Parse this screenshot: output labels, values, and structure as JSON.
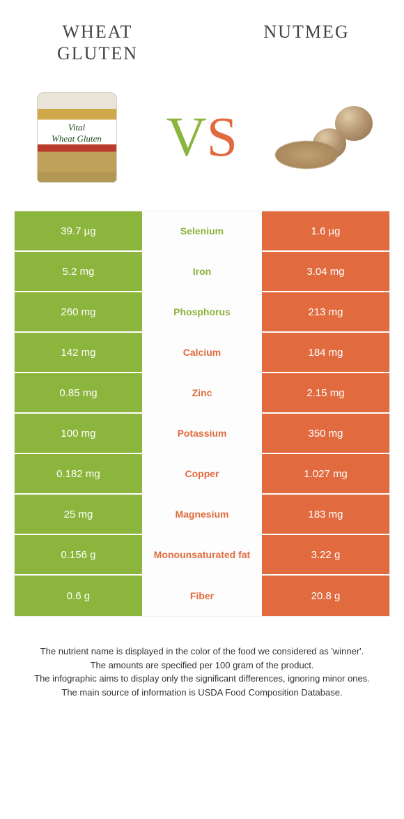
{
  "colors": {
    "left": "#8bb53c",
    "right": "#e16b3f",
    "mid_bg": "#fdfdfd",
    "text_dark": "#333333"
  },
  "foods": {
    "left": {
      "name_line1": "Wheat",
      "name_line2": "gluten"
    },
    "right": {
      "name": "Nutmeg"
    }
  },
  "vs": {
    "v": "V",
    "s": "S"
  },
  "rows": [
    {
      "nutrient": "Selenium",
      "left": "39.7 µg",
      "right": "1.6 µg",
      "winner": "left"
    },
    {
      "nutrient": "Iron",
      "left": "5.2 mg",
      "right": "3.04 mg",
      "winner": "left"
    },
    {
      "nutrient": "Phosphorus",
      "left": "260 mg",
      "right": "213 mg",
      "winner": "left"
    },
    {
      "nutrient": "Calcium",
      "left": "142 mg",
      "right": "184 mg",
      "winner": "right"
    },
    {
      "nutrient": "Zinc",
      "left": "0.85 mg",
      "right": "2.15 mg",
      "winner": "right"
    },
    {
      "nutrient": "Potassium",
      "left": "100 mg",
      "right": "350 mg",
      "winner": "right"
    },
    {
      "nutrient": "Copper",
      "left": "0.182 mg",
      "right": "1.027 mg",
      "winner": "right"
    },
    {
      "nutrient": "Magnesium",
      "left": "25 mg",
      "right": "183 mg",
      "winner": "right"
    },
    {
      "nutrient": "Monounsaturated fat",
      "left": "0.156 g",
      "right": "3.22 g",
      "winner": "right"
    },
    {
      "nutrient": "Fiber",
      "left": "0.6 g",
      "right": "20.8 g",
      "winner": "right"
    }
  ],
  "footer": {
    "l1": "The nutrient name is displayed in the color of the food we considered as 'winner'.",
    "l2": "The amounts are specified per 100 gram of the product.",
    "l3": "The infographic aims to display only the significant differences, ignoring minor ones.",
    "l4": "The main source of information is USDA Food Composition Database."
  }
}
